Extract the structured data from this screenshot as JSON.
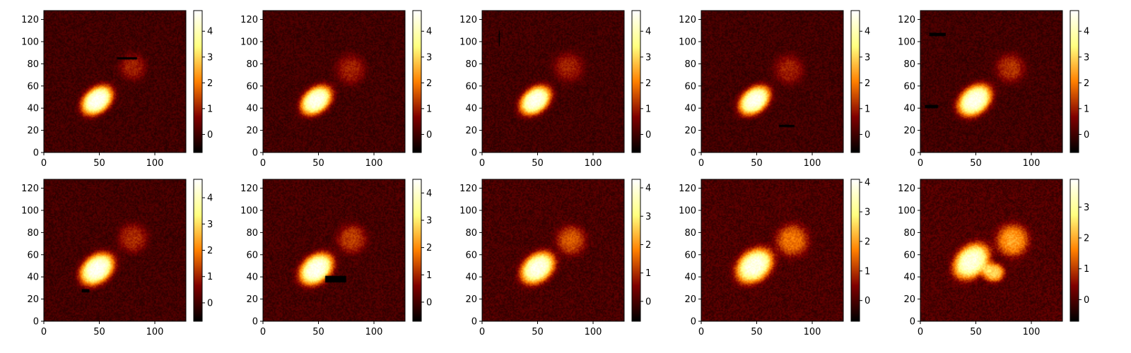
{
  "chart_data": {
    "type": "heatmap",
    "layout": {
      "rows": 2,
      "cols": 5
    },
    "colormap": "afmhot",
    "colormap_stops": [
      "#000000",
      "#800000",
      "#ff8000",
      "#ffff80",
      "#ffffff"
    ],
    "shared": {
      "xlim": [
        0,
        128
      ],
      "ylim": [
        0,
        128
      ],
      "xticks": [
        0,
        50,
        100
      ],
      "yticks": [
        0,
        20,
        40,
        60,
        80,
        100,
        120
      ],
      "grid": false,
      "origin": "lower"
    },
    "panels": [
      {
        "vmin": -0.7,
        "vmax": 4.8,
        "cbar_ticks": [
          0,
          1,
          2,
          3,
          4
        ],
        "blobs": [
          {
            "x": 48,
            "y": 47,
            "sx": 13,
            "sy": 9,
            "rot": -40,
            "amp": 4.7
          },
          {
            "x": 80,
            "y": 77,
            "sx": 10,
            "sy": 10,
            "rot": 0,
            "amp": 1.0
          }
        ],
        "artifacts": [
          {
            "x0": 66,
            "x1": 84,
            "y0": 84,
            "y1": 86
          }
        ]
      },
      {
        "vmin": -0.7,
        "vmax": 4.8,
        "cbar_ticks": [
          0,
          1,
          2,
          3,
          4
        ],
        "blobs": [
          {
            "x": 48,
            "y": 47,
            "sx": 13,
            "sy": 9,
            "rot": -40,
            "amp": 4.6
          },
          {
            "x": 79,
            "y": 75,
            "sx": 11,
            "sy": 11,
            "rot": 0,
            "amp": 1.0
          }
        ],
        "artifacts": []
      },
      {
        "vmin": -0.7,
        "vmax": 4.8,
        "cbar_ticks": [
          0,
          1,
          2,
          3,
          4
        ],
        "blobs": [
          {
            "x": 48,
            "y": 47,
            "sx": 13,
            "sy": 9,
            "rot": -40,
            "amp": 4.6
          },
          {
            "x": 78,
            "y": 77,
            "sx": 11,
            "sy": 11,
            "rot": 0,
            "amp": 1.0
          }
        ],
        "artifacts": [
          {
            "x0": 15,
            "x1": 16,
            "y0": 96,
            "y1": 110
          }
        ]
      },
      {
        "vmin": -0.7,
        "vmax": 4.8,
        "cbar_ticks": [
          0,
          1,
          2,
          3,
          4
        ],
        "blobs": [
          {
            "x": 48,
            "y": 47,
            "sx": 13,
            "sy": 9,
            "rot": -40,
            "amp": 4.6
          },
          {
            "x": 79,
            "y": 75,
            "sx": 11,
            "sy": 11,
            "rot": 0,
            "amp": 1.0
          }
        ],
        "artifacts": [
          {
            "x0": 70,
            "x1": 84,
            "y0": 23,
            "y1": 25
          }
        ]
      },
      {
        "vmin": -0.7,
        "vmax": 4.8,
        "cbar_ticks": [
          0,
          1,
          2,
          3,
          4
        ],
        "blobs": [
          {
            "x": 49,
            "y": 47,
            "sx": 14,
            "sy": 10,
            "rot": -40,
            "amp": 4.6
          },
          {
            "x": 81,
            "y": 76,
            "sx": 11,
            "sy": 11,
            "rot": 0,
            "amp": 1.2
          }
        ],
        "artifacts": [
          {
            "x0": 8,
            "x1": 23,
            "y0": 105,
            "y1": 108
          },
          {
            "x0": 4,
            "x1": 16,
            "y0": 40,
            "y1": 43
          }
        ]
      },
      {
        "vmin": -0.7,
        "vmax": 4.7,
        "cbar_ticks": [
          0,
          1,
          2,
          3,
          4
        ],
        "blobs": [
          {
            "x": 48,
            "y": 47,
            "sx": 14,
            "sy": 10,
            "rot": -40,
            "amp": 4.6
          },
          {
            "x": 80,
            "y": 75,
            "sx": 11,
            "sy": 11,
            "rot": 0,
            "amp": 1.1
          }
        ],
        "artifacts": [
          {
            "x0": 34,
            "x1": 41,
            "y0": 26,
            "y1": 29
          }
        ]
      },
      {
        "vmin": -0.7,
        "vmax": 4.5,
        "cbar_ticks": [
          0,
          1,
          2,
          3,
          4
        ],
        "blobs": [
          {
            "x": 48,
            "y": 47,
            "sx": 14,
            "sy": 10,
            "rot": -40,
            "amp": 4.4
          },
          {
            "x": 80,
            "y": 74,
            "sx": 11,
            "sy": 11,
            "rot": 0,
            "amp": 1.2
          }
        ],
        "artifacts": [
          {
            "x0": 56,
            "x1": 75,
            "y0": 35,
            "y1": 41
          }
        ]
      },
      {
        "vmin": -0.7,
        "vmax": 4.3,
        "cbar_ticks": [
          0,
          1,
          2,
          3,
          4
        ],
        "blobs": [
          {
            "x": 50,
            "y": 48,
            "sx": 14,
            "sy": 10,
            "rot": -40,
            "amp": 4.1
          },
          {
            "x": 80,
            "y": 73,
            "sx": 11,
            "sy": 11,
            "rot": 0,
            "amp": 1.4
          }
        ],
        "artifacts": []
      },
      {
        "vmin": -0.7,
        "vmax": 4.1,
        "cbar_ticks": [
          0,
          1,
          2,
          3,
          4
        ],
        "blobs": [
          {
            "x": 48,
            "y": 50,
            "sx": 15,
            "sy": 11,
            "rot": -40,
            "amp": 3.9
          },
          {
            "x": 82,
            "y": 73,
            "sx": 12,
            "sy": 12,
            "rot": 0,
            "amp": 1.6
          }
        ],
        "artifacts": []
      },
      {
        "vmin": -0.7,
        "vmax": 3.9,
        "cbar_ticks": [
          0,
          1,
          2,
          3
        ],
        "blobs": [
          {
            "x": 46,
            "y": 54,
            "sx": 15,
            "sy": 11,
            "rot": -45,
            "amp": 3.6
          },
          {
            "x": 83,
            "y": 73,
            "sx": 12,
            "sy": 12,
            "rot": 0,
            "amp": 1.9
          },
          {
            "x": 66,
            "y": 44,
            "sx": 8,
            "sy": 7,
            "rot": 0,
            "amp": 2.4
          }
        ],
        "artifacts": []
      }
    ]
  }
}
